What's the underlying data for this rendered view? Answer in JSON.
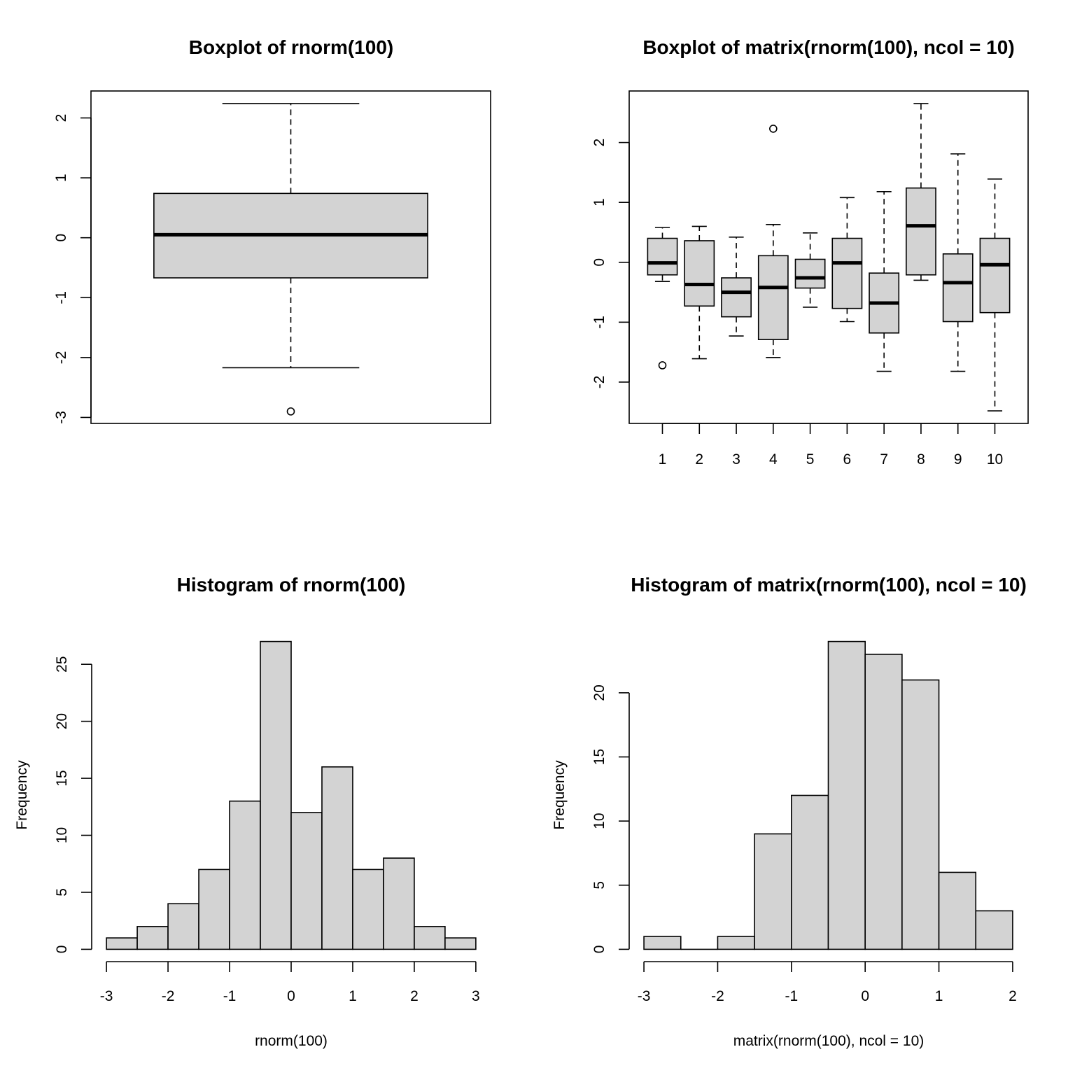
{
  "chart_data": [
    {
      "type": "boxplot",
      "title": "Boxplot of rnorm(100)",
      "ylim": [
        -3.1,
        2.45
      ],
      "yticks": [
        -3,
        -2,
        -1,
        0,
        1,
        2
      ],
      "box_fill": "#d3d3d3",
      "boxes": [
        {
          "whisker_low": -2.17,
          "q1": -0.67,
          "median": 0.05,
          "q3": 0.74,
          "whisker_high": 2.24,
          "outliers": [
            -2.9
          ]
        }
      ]
    },
    {
      "type": "boxplot",
      "title": "Boxplot of matrix(rnorm(100), ncol = 10)",
      "ylim": [
        -2.69,
        2.86
      ],
      "yticks": [
        -2,
        -1,
        0,
        1,
        2
      ],
      "categories": [
        "1",
        "2",
        "3",
        "4",
        "5",
        "6",
        "7",
        "8",
        "9",
        "10"
      ],
      "box_fill": "#d3d3d3",
      "boxes": [
        {
          "whisker_low": -0.32,
          "q1": -0.21,
          "median": -0.01,
          "q3": 0.4,
          "whisker_high": 0.58,
          "outliers": [
            -1.72
          ]
        },
        {
          "whisker_low": -1.61,
          "q1": -0.73,
          "median": -0.37,
          "q3": 0.36,
          "whisker_high": 0.6,
          "outliers": []
        },
        {
          "whisker_low": -1.23,
          "q1": -0.91,
          "median": -0.5,
          "q3": -0.26,
          "whisker_high": 0.42,
          "outliers": []
        },
        {
          "whisker_low": -1.59,
          "q1": -1.29,
          "median": -0.42,
          "q3": 0.11,
          "whisker_high": 0.63,
          "outliers": [
            2.23
          ]
        },
        {
          "whisker_low": -0.75,
          "q1": -0.43,
          "median": -0.26,
          "q3": 0.05,
          "whisker_high": 0.49,
          "outliers": []
        },
        {
          "whisker_low": -0.99,
          "q1": -0.77,
          "median": -0.01,
          "q3": 0.4,
          "whisker_high": 1.08,
          "outliers": []
        },
        {
          "whisker_low": -1.82,
          "q1": -1.18,
          "median": -0.68,
          "q3": -0.18,
          "whisker_high": 1.18,
          "outliers": []
        },
        {
          "whisker_low": -0.3,
          "q1": -0.21,
          "median": 0.61,
          "q3": 1.24,
          "whisker_high": 2.65,
          "outliers": []
        },
        {
          "whisker_low": -1.82,
          "q1": -0.99,
          "median": -0.34,
          "q3": 0.14,
          "whisker_high": 1.81,
          "outliers": []
        },
        {
          "whisker_low": -2.48,
          "q1": -0.84,
          "median": -0.04,
          "q3": 0.4,
          "whisker_high": 1.39,
          "outliers": []
        }
      ]
    },
    {
      "type": "histogram",
      "title": "Histogram of rnorm(100)",
      "xlabel": "rnorm(100)",
      "ylabel": "Frequency",
      "breaks": [
        -3,
        -2.5,
        -2,
        -1.5,
        -1,
        -0.5,
        0,
        0.5,
        1,
        1.5,
        2,
        2.5,
        3
      ],
      "counts": [
        1,
        2,
        4,
        7,
        13,
        27,
        12,
        16,
        7,
        8,
        2,
        1
      ],
      "xlim": [
        -3,
        3
      ],
      "ylim": [
        0,
        27
      ],
      "xticks": [
        -3,
        -2,
        -1,
        0,
        1,
        2,
        3
      ],
      "yticks": [
        0,
        5,
        10,
        15,
        20,
        25
      ],
      "bar_fill": "#d3d3d3"
    },
    {
      "type": "histogram",
      "title": "Histogram of matrix(rnorm(100), ncol = 10)",
      "xlabel": "matrix(rnorm(100), ncol = 10)",
      "ylabel": "Frequency",
      "breaks": [
        -3,
        -2.5,
        -2,
        -1.5,
        -1,
        -0.5,
        0,
        0.5,
        1,
        1.5,
        2
      ],
      "counts": [
        1,
        0,
        1,
        9,
        12,
        24,
        23,
        21,
        6,
        3
      ],
      "xlim": [
        -3,
        2
      ],
      "ylim": [
        0,
        24
      ],
      "xticks": [
        -3,
        -2,
        -1,
        0,
        1,
        2
      ],
      "yticks": [
        0,
        5,
        10,
        15,
        20
      ],
      "bar_fill": "#d3d3d3"
    }
  ]
}
